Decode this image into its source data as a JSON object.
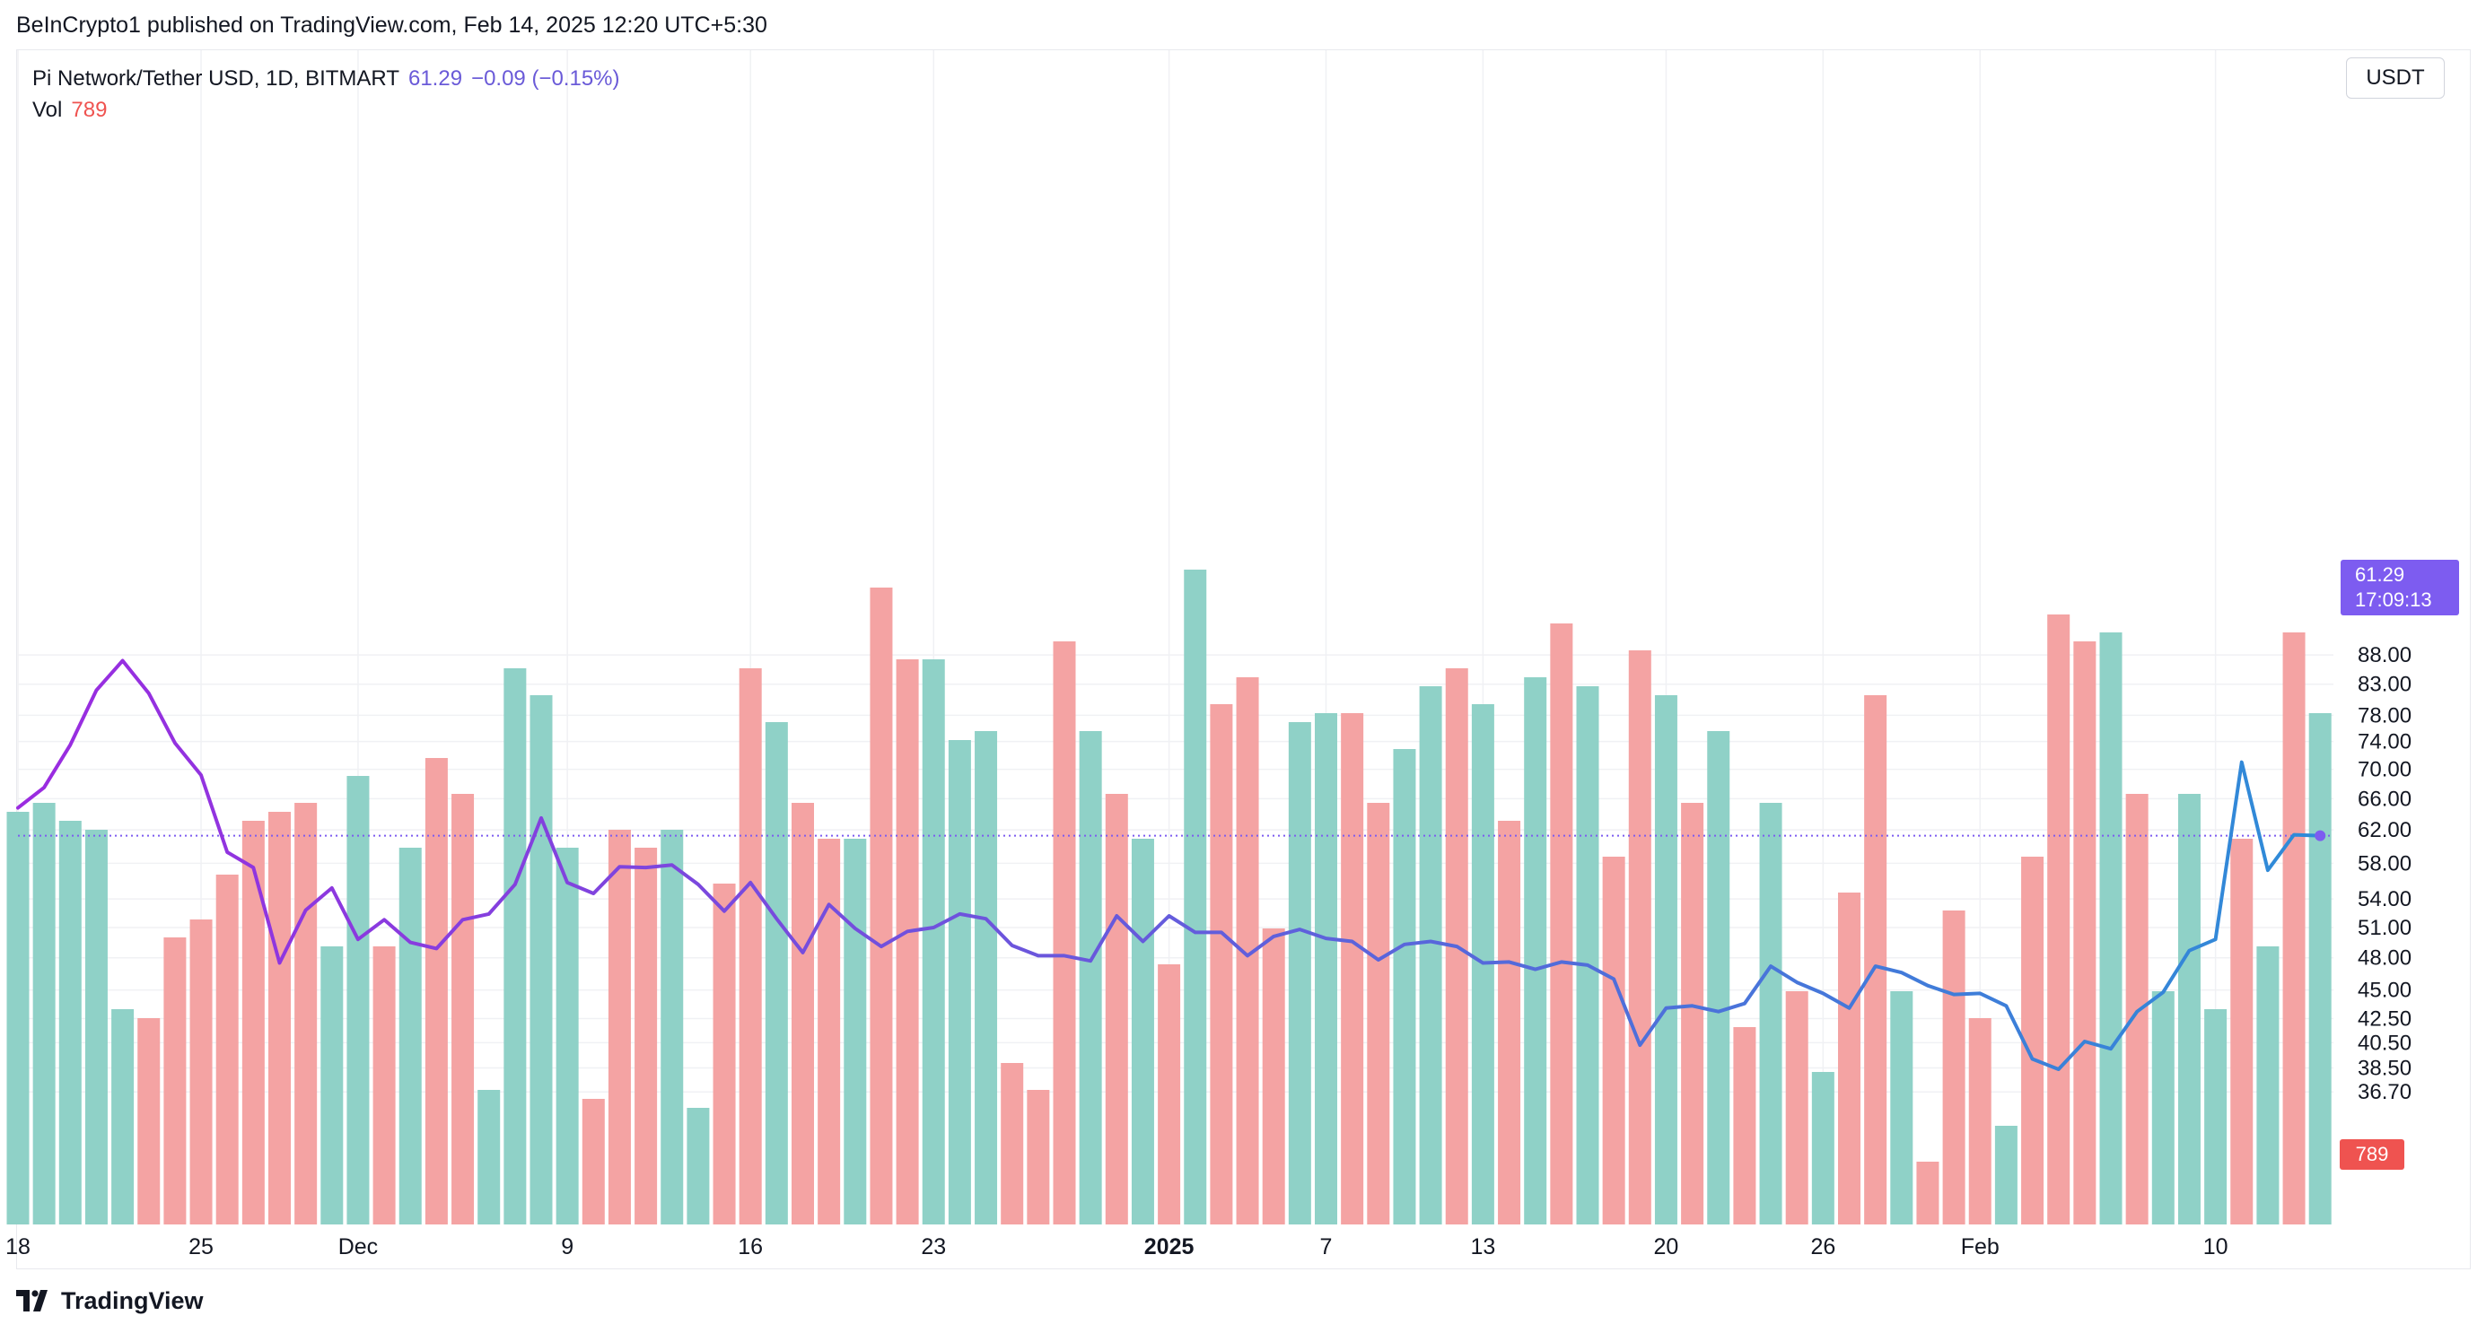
{
  "byline": "BeInCrypto1 published on TradingView.com, Feb 14, 2025 12:20 UTC+5:30",
  "legend": {
    "series_title": "Pi Network/Tether USD, 1D, BITMART",
    "last": "61.29",
    "change": "−0.09 (−0.15%)",
    "vol_label": "Vol",
    "vol_value": "789"
  },
  "unit": "USDT",
  "price_badge": {
    "price": "61.29",
    "countdown": "17:09:13"
  },
  "volume_badge": "789",
  "brand": "TradingView",
  "colors": {
    "line_start": "#9b2be0",
    "line_end": "#2f8bd8",
    "volume_up": "#8fd1c7",
    "volume_down": "#f4a3a3",
    "badge": "#7d5cf0",
    "grid": "#f0f1f4"
  },
  "chart_data": {
    "type": "line",
    "title": "Pi Network/Tether USD, 1D, BITMART",
    "y_scale": "log",
    "y_ticks": [
      "88.00",
      "83.00",
      "78.00",
      "74.00",
      "70.00",
      "66.00",
      "62.00",
      "58.00",
      "54.00",
      "51.00",
      "48.00",
      "45.00",
      "42.50",
      "40.50",
      "38.50",
      "36.70"
    ],
    "x_ticks": [
      {
        "label": "18",
        "date": "2024-11-18"
      },
      {
        "label": "25",
        "date": "2024-11-25"
      },
      {
        "label": "Dec",
        "date": "2024-12-01"
      },
      {
        "label": "9",
        "date": "2024-12-09"
      },
      {
        "label": "16",
        "date": "2024-12-16"
      },
      {
        "label": "23",
        "date": "2024-12-23"
      },
      {
        "label": "2025",
        "date": "2025-01-01",
        "bold": true
      },
      {
        "label": "7",
        "date": "2025-01-07"
      },
      {
        "label": "13",
        "date": "2025-01-13"
      },
      {
        "label": "20",
        "date": "2025-01-20"
      },
      {
        "label": "26",
        "date": "2025-01-26"
      },
      {
        "label": "Feb",
        "date": "2025-02-01"
      },
      {
        "label": "10",
        "date": "2025-02-10"
      }
    ],
    "dates": [
      "2024-11-18",
      "2024-11-19",
      "2024-11-20",
      "2024-11-21",
      "2024-11-22",
      "2024-11-23",
      "2024-11-24",
      "2024-11-25",
      "2024-11-26",
      "2024-11-27",
      "2024-11-28",
      "2024-11-29",
      "2024-11-30",
      "2024-12-01",
      "2024-12-02",
      "2024-12-03",
      "2024-12-04",
      "2024-12-05",
      "2024-12-06",
      "2024-12-07",
      "2024-12-08",
      "2024-12-09",
      "2024-12-10",
      "2024-12-11",
      "2024-12-12",
      "2024-12-13",
      "2024-12-14",
      "2024-12-15",
      "2024-12-16",
      "2024-12-17",
      "2024-12-18",
      "2024-12-19",
      "2024-12-20",
      "2024-12-21",
      "2024-12-22",
      "2024-12-23",
      "2024-12-24",
      "2024-12-25",
      "2024-12-26",
      "2024-12-27",
      "2024-12-28",
      "2024-12-29",
      "2024-12-30",
      "2024-12-31",
      "2025-01-01",
      "2025-01-02",
      "2025-01-03",
      "2025-01-04",
      "2025-01-05",
      "2025-01-06",
      "2025-01-07",
      "2025-01-08",
      "2025-01-09",
      "2025-01-10",
      "2025-01-11",
      "2025-01-12",
      "2025-01-13",
      "2025-01-14",
      "2025-01-15",
      "2025-01-16",
      "2025-01-17",
      "2025-01-18",
      "2025-01-19",
      "2025-01-20",
      "2025-01-21",
      "2025-01-22",
      "2025-01-23",
      "2025-01-24",
      "2025-01-25",
      "2025-01-26",
      "2025-01-27",
      "2025-01-28",
      "2025-01-29",
      "2025-01-30",
      "2025-01-31",
      "2025-02-01",
      "2025-02-02",
      "2025-02-03",
      "2025-02-04",
      "2025-02-05",
      "2025-02-06",
      "2025-02-07",
      "2025-02-08",
      "2025-02-09",
      "2025-02-10",
      "2025-02-11",
      "2025-02-12",
      "2025-02-13",
      "2025-02-14"
    ],
    "close": [
      64.8,
      67.5,
      73.5,
      82.0,
      87.0,
      81.5,
      73.8,
      69.2,
      59.3,
      57.5,
      47.5,
      52.8,
      55.2,
      49.8,
      51.8,
      49.5,
      48.9,
      51.8,
      52.4,
      55.6,
      63.5,
      55.8,
      54.6,
      57.6,
      57.5,
      57.8,
      55.6,
      52.7,
      55.8,
      51.9,
      48.5,
      53.4,
      50.9,
      49.1,
      50.6,
      51.0,
      52.4,
      51.9,
      49.2,
      48.2,
      48.2,
      47.7,
      52.2,
      49.6,
      52.2,
      50.5,
      50.5,
      48.2,
      50.1,
      50.8,
      49.9,
      49.6,
      47.8,
      49.3,
      49.6,
      49.1,
      47.5,
      47.6,
      46.9,
      47.6,
      47.3,
      46.0,
      40.3,
      43.4,
      43.6,
      43.1,
      43.8,
      47.2,
      45.7,
      44.7,
      43.4,
      47.2,
      46.6,
      45.4,
      44.6,
      44.7,
      43.6,
      39.2,
      38.4,
      40.6,
      40.0,
      43.1,
      44.8,
      48.7,
      49.8,
      71.0,
      57.2,
      61.4,
      61.29
    ],
    "volume": [
      46,
      47,
      45,
      44,
      24,
      23,
      32,
      34,
      39,
      45,
      46,
      47,
      31,
      50,
      31,
      42,
      52,
      48,
      15,
      62,
      59,
      42,
      14,
      44,
      42,
      44,
      13,
      38,
      62,
      56,
      47,
      43,
      43,
      71,
      63,
      63,
      54,
      55,
      18,
      15,
      65,
      55,
      48,
      43,
      29,
      73,
      58,
      61,
      33,
      56,
      57,
      57,
      47,
      53,
      60,
      62,
      58,
      45,
      61,
      67,
      60,
      41,
      64,
      59,
      47,
      55,
      22,
      47,
      26,
      17,
      37,
      59,
      26,
      7,
      35,
      23,
      11,
      41,
      68,
      65,
      66,
      48,
      26,
      48,
      24,
      43,
      31,
      66,
      57
    ],
    "volume_up": [
      1,
      1,
      1,
      1,
      1,
      0,
      0,
      0,
      0,
      0,
      0,
      0,
      1,
      1,
      0,
      1,
      0,
      0,
      1,
      1,
      1,
      1,
      0,
      0,
      0,
      1,
      1,
      0,
      0,
      1,
      0,
      0,
      1,
      0,
      0,
      1,
      1,
      1,
      0,
      0,
      0,
      1,
      0,
      1,
      0,
      1,
      0,
      0,
      0,
      1,
      1,
      0,
      0,
      1,
      1,
      0,
      1,
      0,
      1,
      0,
      1,
      0,
      0,
      1,
      0,
      1,
      0,
      1,
      0,
      1,
      0,
      0,
      1,
      0,
      0,
      0,
      1,
      0,
      0,
      0,
      1,
      0,
      1,
      1,
      1,
      0,
      1,
      0,
      1
    ],
    "volume_range": [
      0,
      120
    ],
    "last_price_line": 61.29
  }
}
